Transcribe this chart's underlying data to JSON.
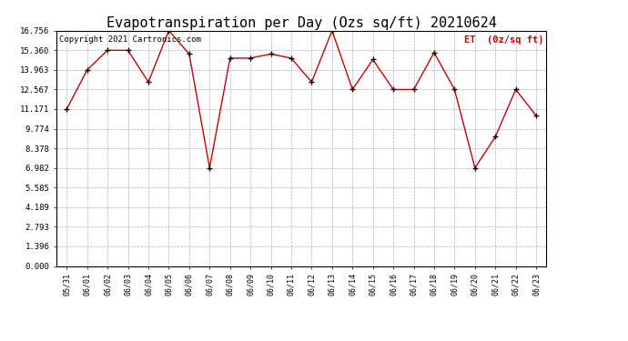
{
  "title": "Evapotranspiration per Day (Ozs sq/ft) 20210624",
  "copyright": "Copyright 2021 Cartronics.com",
  "legend_label": "ET  (0z/sq ft)",
  "dates": [
    "05/31",
    "06/01",
    "06/02",
    "06/03",
    "06/04",
    "06/05",
    "06/06",
    "06/07",
    "06/08",
    "06/09",
    "06/10",
    "06/11",
    "06/12",
    "06/13",
    "06/14",
    "06/15",
    "06/16",
    "06/17",
    "06/18",
    "06/19",
    "06/20",
    "06/21",
    "06/22",
    "06/23"
  ],
  "et_values": [
    11.171,
    13.963,
    15.36,
    15.36,
    13.1,
    16.756,
    15.1,
    6.982,
    14.8,
    14.8,
    15.1,
    14.8,
    13.1,
    16.756,
    12.567,
    14.7,
    12.567,
    12.567,
    15.2,
    12.567,
    6.982,
    9.2,
    12.567,
    10.7
  ],
  "line_color": "#cc0000",
  "marker_color": "#000000",
  "background_color": "#ffffff",
  "grid_color": "#b0b0b0",
  "title_fontsize": 11,
  "ylabel_color": "#cc0000",
  "copyright_color": "#000000",
  "copyright_fontsize": 6.5,
  "yticks": [
    0.0,
    1.396,
    2.793,
    4.189,
    5.585,
    6.982,
    8.378,
    9.774,
    11.171,
    12.567,
    13.963,
    15.36,
    16.756
  ],
  "ymax": 16.756,
  "ymin": 0.0
}
